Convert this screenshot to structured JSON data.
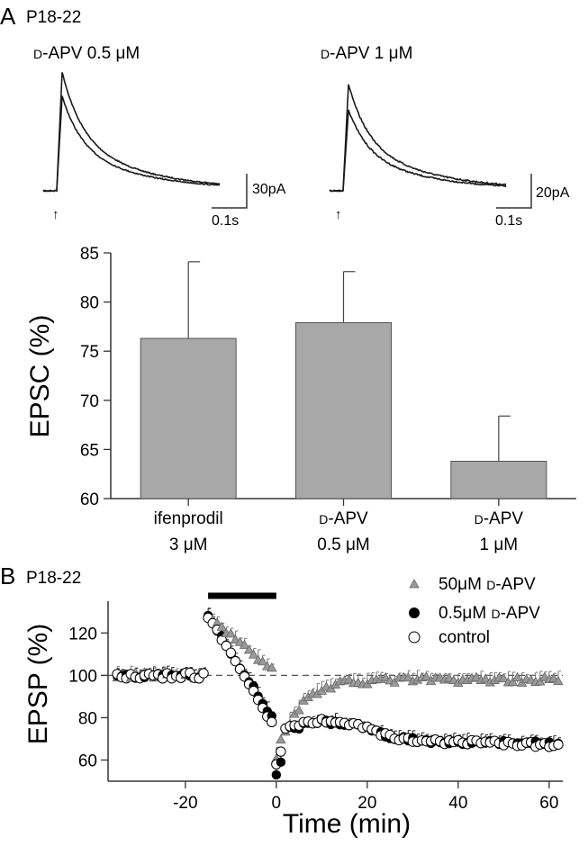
{
  "chart_data": [
    {
      "panel": "A",
      "type": "line",
      "group_label": "P18-22",
      "traces": [
        {
          "label": "D-APV 0.5 μM",
          "scale_current": "30pA",
          "scale_time": "0.1s"
        },
        {
          "label": "D-APV 1 μM",
          "scale_current": "20pA",
          "scale_time": "0.1s"
        }
      ]
    },
    {
      "panel": "A",
      "type": "bar",
      "categories": [
        {
          "line1": "ifenprodil",
          "line2": "3 μM"
        },
        {
          "line1": "D-APV",
          "line2": "0.5 μM"
        },
        {
          "line1": "D-APV",
          "line2": "1 μM"
        }
      ],
      "values": [
        76.3,
        77.9,
        63.8
      ],
      "errors": [
        7.8,
        5.2,
        4.6
      ],
      "ylabel": "EPSC (%)",
      "ylim": [
        60,
        85
      ],
      "yticks": [
        60,
        65,
        70,
        75,
        80,
        85
      ],
      "color": "#a8a8a8"
    },
    {
      "panel": "B",
      "type": "scatter",
      "group_label": "P18-22",
      "xlabel": "Time (min)",
      "ylabel": "EPSP (%)",
      "xlim": [
        -37,
        63
      ],
      "ylim": [
        50,
        135
      ],
      "xticks": [
        -20,
        0,
        20,
        40,
        60
      ],
      "yticks": [
        60,
        80,
        100,
        120
      ],
      "reference_line": 100,
      "drug_bar": [
        -15,
        0
      ],
      "legend_position": "top-right",
      "series": [
        {
          "name": "50μM D-APV",
          "marker": "triangle",
          "color": "#999999"
        },
        {
          "name": "0.5μM D-APV",
          "marker": "filled-circle",
          "color": "#000000"
        },
        {
          "name": "control",
          "marker": "open-circle",
          "color": "#ffffff"
        }
      ]
    }
  ]
}
